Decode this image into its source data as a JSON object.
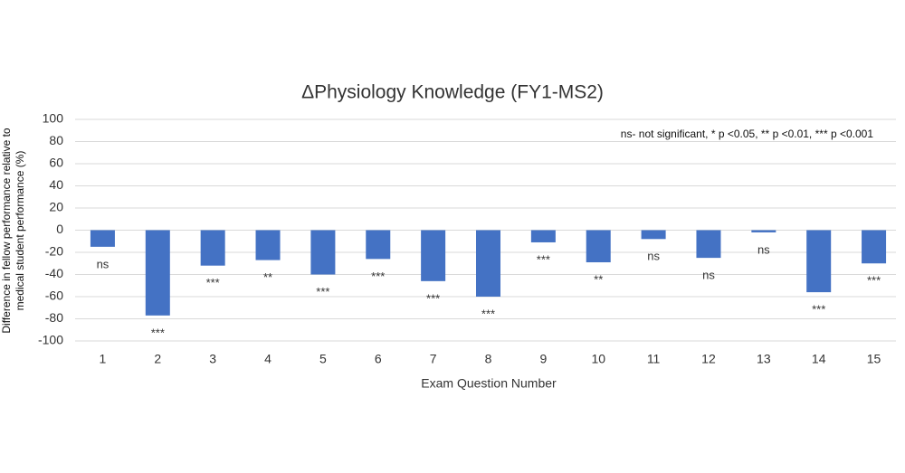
{
  "chart_data": {
    "type": "bar",
    "title": "ΔPhysiology Knowledge (FY1-MS2)",
    "xlabel": "Exam Question Number",
    "ylabel": [
      "Difference in fellow performance relative to",
      "medical student performance (%)"
    ],
    "note": "ns- not significant, * p <0.05, ** p <0.01, *** p <0.001",
    "categories": [
      "1",
      "2",
      "3",
      "4",
      "5",
      "6",
      "7",
      "8",
      "9",
      "10",
      "11",
      "12",
      "13",
      "14",
      "15"
    ],
    "values": [
      -15,
      -77,
      -32,
      -27,
      -40,
      -26,
      -46,
      -60,
      -11,
      -29,
      -8,
      -25,
      -2,
      -56,
      -30
    ],
    "significance": [
      "ns",
      "***",
      "***",
      "**",
      "***",
      "***",
      "***",
      "***",
      "***",
      "**",
      "ns",
      "ns",
      "ns",
      "***",
      "***"
    ],
    "color": "#4472c4",
    "ylim": [
      -100,
      100
    ],
    "yticks": [
      -100,
      -80,
      -60,
      -40,
      -20,
      0,
      20,
      40,
      60,
      80,
      100
    ],
    "grid": true
  }
}
